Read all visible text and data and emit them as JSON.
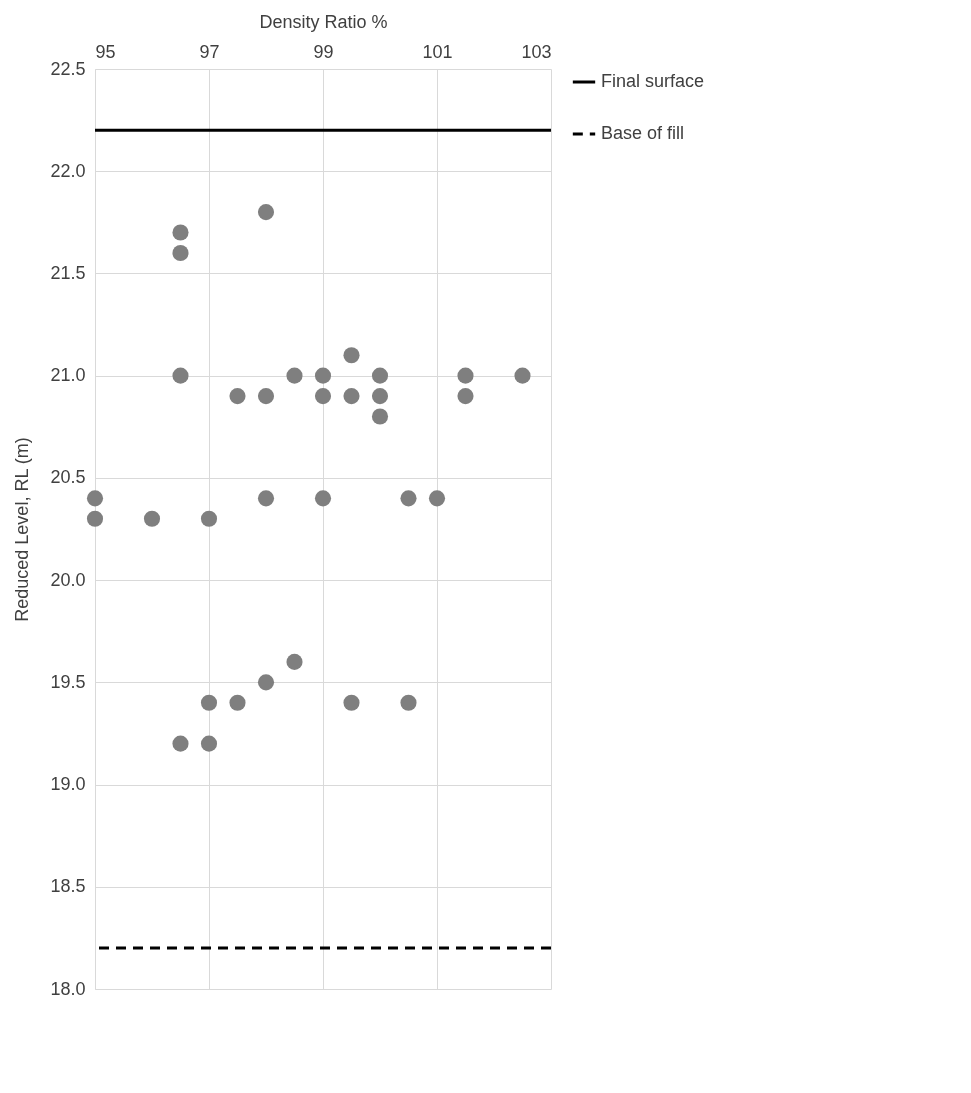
{
  "chart_data": {
    "type": "scatter",
    "xlabel": "Density Ratio %",
    "ylabel": "Reduced Level, RL (m)",
    "x": [
      96.5,
      96.5,
      98,
      96.5,
      97.5,
      98,
      98.5,
      99,
      99,
      99.5,
      99.5,
      100,
      100,
      100,
      101.5,
      101.5,
      102.5,
      95,
      95,
      96,
      97,
      98,
      99,
      100.5,
      101,
      98.5,
      98,
      97,
      97.5,
      99.5,
      100.5,
      96.5,
      97
    ],
    "series": [
      {
        "color": "#7f7f7f",
        "values": [
          21.7,
          21.6,
          21.8,
          21.0,
          20.9,
          20.9,
          21.0,
          21.0,
          20.9,
          21.1,
          20.9,
          21.0,
          20.9,
          20.8,
          21.0,
          20.9,
          21.0,
          20.4,
          20.3,
          20.3,
          20.3,
          20.4,
          20.4,
          20.4,
          20.4,
          19.6,
          19.5,
          19.4,
          19.4,
          19.4,
          19.4,
          19.2,
          19.2
        ]
      }
    ],
    "ref_lines": [
      {
        "axis": "y",
        "value": 22.2,
        "label": "Final surface",
        "color": "#000000",
        "line_style": "solid"
      },
      {
        "axis": "y",
        "value": 18.2,
        "label": "Base of fill",
        "color": "#000000",
        "line_style": "dashed"
      }
    ],
    "xlim": [
      95,
      103
    ],
    "xticks": [
      95,
      97,
      99,
      101,
      103
    ],
    "ylim": [
      18,
      22.5
    ],
    "yticks": [
      {
        "value": 18,
        "label": "18.0"
      },
      {
        "value": 18.5,
        "label": "18.5"
      },
      {
        "value": 19,
        "label": "19.0"
      },
      {
        "value": 19.5,
        "label": "19.5"
      },
      {
        "value": 20,
        "label": "20.0"
      },
      {
        "value": 20.5,
        "label": "20.5"
      },
      {
        "value": 21,
        "label": "21.0"
      },
      {
        "value": 21.5,
        "label": "21.5"
      },
      {
        "value": 22,
        "label": "22.0"
      },
      {
        "value": 22.5,
        "label": "22.5"
      }
    ],
    "grid": true,
    "legend": "right",
    "marker": "circle"
  }
}
